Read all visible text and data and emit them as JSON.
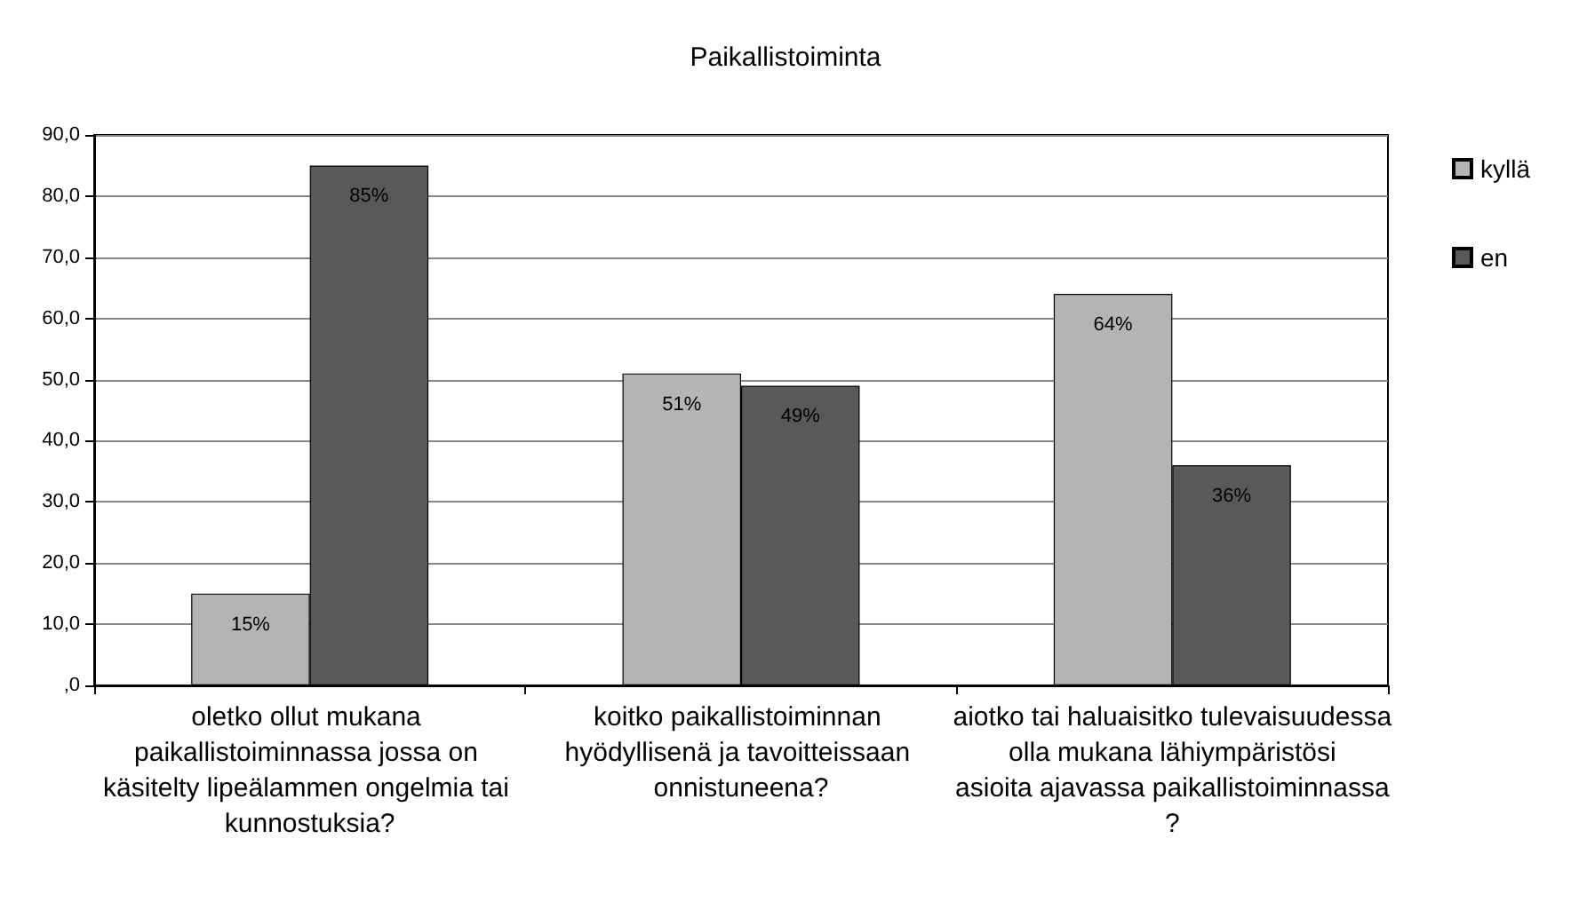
{
  "chart_data": {
    "type": "bar",
    "title": "Paikallistoiminta",
    "categories": [
      "oletko ollut mukana paikallistoiminnassa jossa on käsitelty lipeälammen ongelmia tai kunnostuksia?",
      "koitko paikallistoiminnan hyödyllisenä ja tavoitteissaan onnistuneena?",
      "aiotko tai haluaisitko tulevaisuudessa olla mukana lähiympäristösi asioita ajavassa paikallistoiminnassa?"
    ],
    "series": [
      {
        "name": "kyllä",
        "color": "#b4b4b4",
        "values": [
          15,
          51,
          64
        ],
        "value_labels": [
          "15%",
          "51%",
          "64%"
        ]
      },
      {
        "name": "en",
        "color": "#595959",
        "values": [
          85,
          49,
          36
        ],
        "value_labels": [
          "85%",
          "49%",
          "36%"
        ]
      }
    ],
    "ylim": [
      0,
      90
    ],
    "yticks": [
      {
        "value": 0,
        "label": ",0"
      },
      {
        "value": 10,
        "label": "10,0"
      },
      {
        "value": 20,
        "label": "20,0"
      },
      {
        "value": 30,
        "label": "30,0"
      },
      {
        "value": 40,
        "label": "40,0"
      },
      {
        "value": 50,
        "label": "50,0"
      },
      {
        "value": 60,
        "label": "60,0"
      },
      {
        "value": 70,
        "label": "70,0"
      },
      {
        "value": 80,
        "label": "80,0"
      },
      {
        "value": 90,
        "label": "90,0"
      }
    ],
    "grid": true,
    "legend": "right"
  }
}
